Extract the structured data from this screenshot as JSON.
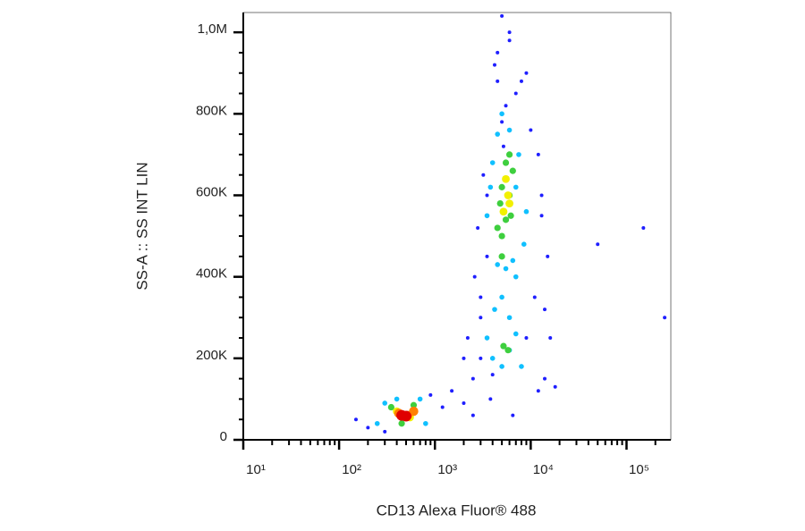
{
  "chart_data": {
    "type": "scatter",
    "x_label": "CD13 Alexa Fluor® 488",
    "y_label": "SS-A :: SS INT LIN",
    "xscale": "log",
    "xlim": [
      10,
      290000
    ],
    "ylim": [
      0,
      1048576
    ],
    "xticks": [
      {
        "value": 10,
        "label": "10¹"
      },
      {
        "value": 100,
        "label": "10²"
      },
      {
        "value": 1000,
        "label": "10³"
      },
      {
        "value": 10000,
        "label": "10⁴"
      },
      {
        "value": 100000,
        "label": "10⁵"
      }
    ],
    "xminorticks": [
      20,
      30,
      40,
      50,
      60,
      70,
      80,
      90,
      200,
      300,
      400,
      500,
      600,
      700,
      800,
      900,
      2000,
      3000,
      4000,
      5000,
      6000,
      7000,
      8000,
      9000,
      20000,
      30000,
      40000,
      50000,
      60000,
      70000,
      80000,
      90000,
      200000
    ],
    "yticks": [
      0,
      {
        "value": 200000,
        "label": "200K"
      },
      {
        "value": 400000,
        "label": "400K"
      },
      {
        "value": 600000,
        "label": "600K"
      },
      {
        "value": 800000,
        "label": "800K"
      },
      {
        "value": 1000000,
        "label": "1,0M"
      }
    ],
    "yminorticks": [
      50000,
      100000,
      150000,
      250000,
      300000,
      350000,
      450000,
      500000,
      550000,
      650000,
      700000,
      750000,
      850000,
      900000,
      950000
    ],
    "series": [
      {
        "color": "#1f1fff",
        "x": [
          150,
          200,
          300,
          900,
          1200,
          1500,
          2000,
          2500,
          2200,
          3000,
          3500,
          2800,
          4000,
          5000,
          7000,
          9000,
          12000,
          15000,
          14000,
          11000,
          3000,
          3200,
          4500,
          6000,
          8000,
          10000,
          13000,
          2500,
          3000,
          4000,
          5000,
          4500,
          5500,
          6000,
          4200,
          5200,
          3800,
          6500,
          50000,
          150000,
          250000,
          16000,
          18000,
          2000,
          2600,
          3500,
          9000,
          12000,
          14000,
          13000
        ],
        "values": [
          50000,
          30000,
          20000,
          110000,
          80000,
          120000,
          90000,
          150000,
          250000,
          350000,
          450000,
          520000,
          680000,
          780000,
          850000,
          900000,
          700000,
          450000,
          150000,
          350000,
          200000,
          650000,
          950000,
          1000000,
          880000,
          760000,
          550000,
          60000,
          300000,
          160000,
          1040000,
          880000,
          820000,
          980000,
          920000,
          720000,
          100000,
          60000,
          480000,
          520000,
          300000,
          250000,
          130000,
          200000,
          400000,
          600000,
          250000,
          120000,
          320000,
          600000
        ]
      },
      {
        "color": "#10c0ff",
        "x": [
          250,
          300,
          400,
          700,
          800,
          3500,
          4000,
          5000,
          6000,
          7000,
          8000,
          4500,
          5500,
          6500,
          3500,
          4000,
          7500,
          9000,
          4500,
          5000,
          6000,
          7000,
          3800,
          8500,
          5000,
          6000,
          4200,
          7000
        ],
        "values": [
          40000,
          90000,
          100000,
          100000,
          40000,
          250000,
          200000,
          180000,
          220000,
          260000,
          180000,
          430000,
          420000,
          440000,
          550000,
          680000,
          700000,
          560000,
          750000,
          800000,
          760000,
          620000,
          620000,
          480000,
          350000,
          300000,
          320000,
          400000
        ]
      },
      {
        "color": "#3ecf3e",
        "x": [
          350,
          450,
          600,
          4500,
          5000,
          5500,
          6000,
          6500,
          5000,
          5500,
          4800,
          6200,
          5200,
          5800,
          5000,
          6000
        ],
        "values": [
          80000,
          40000,
          85000,
          520000,
          500000,
          540000,
          600000,
          660000,
          620000,
          680000,
          580000,
          550000,
          230000,
          220000,
          450000,
          700000
        ]
      },
      {
        "color": "#f2f000",
        "x": [
          400,
          550,
          5200,
          5800,
          5500,
          6000
        ],
        "values": [
          70000,
          55000,
          560000,
          600000,
          640000,
          580000
        ]
      },
      {
        "color": "#ff8000",
        "x": [
          420,
          520,
          600
        ],
        "values": [
          65000,
          60000,
          70000
        ]
      },
      {
        "color": "#e00000",
        "x": [
          450,
          500
        ],
        "values": [
          60000,
          58000
        ]
      }
    ]
  }
}
